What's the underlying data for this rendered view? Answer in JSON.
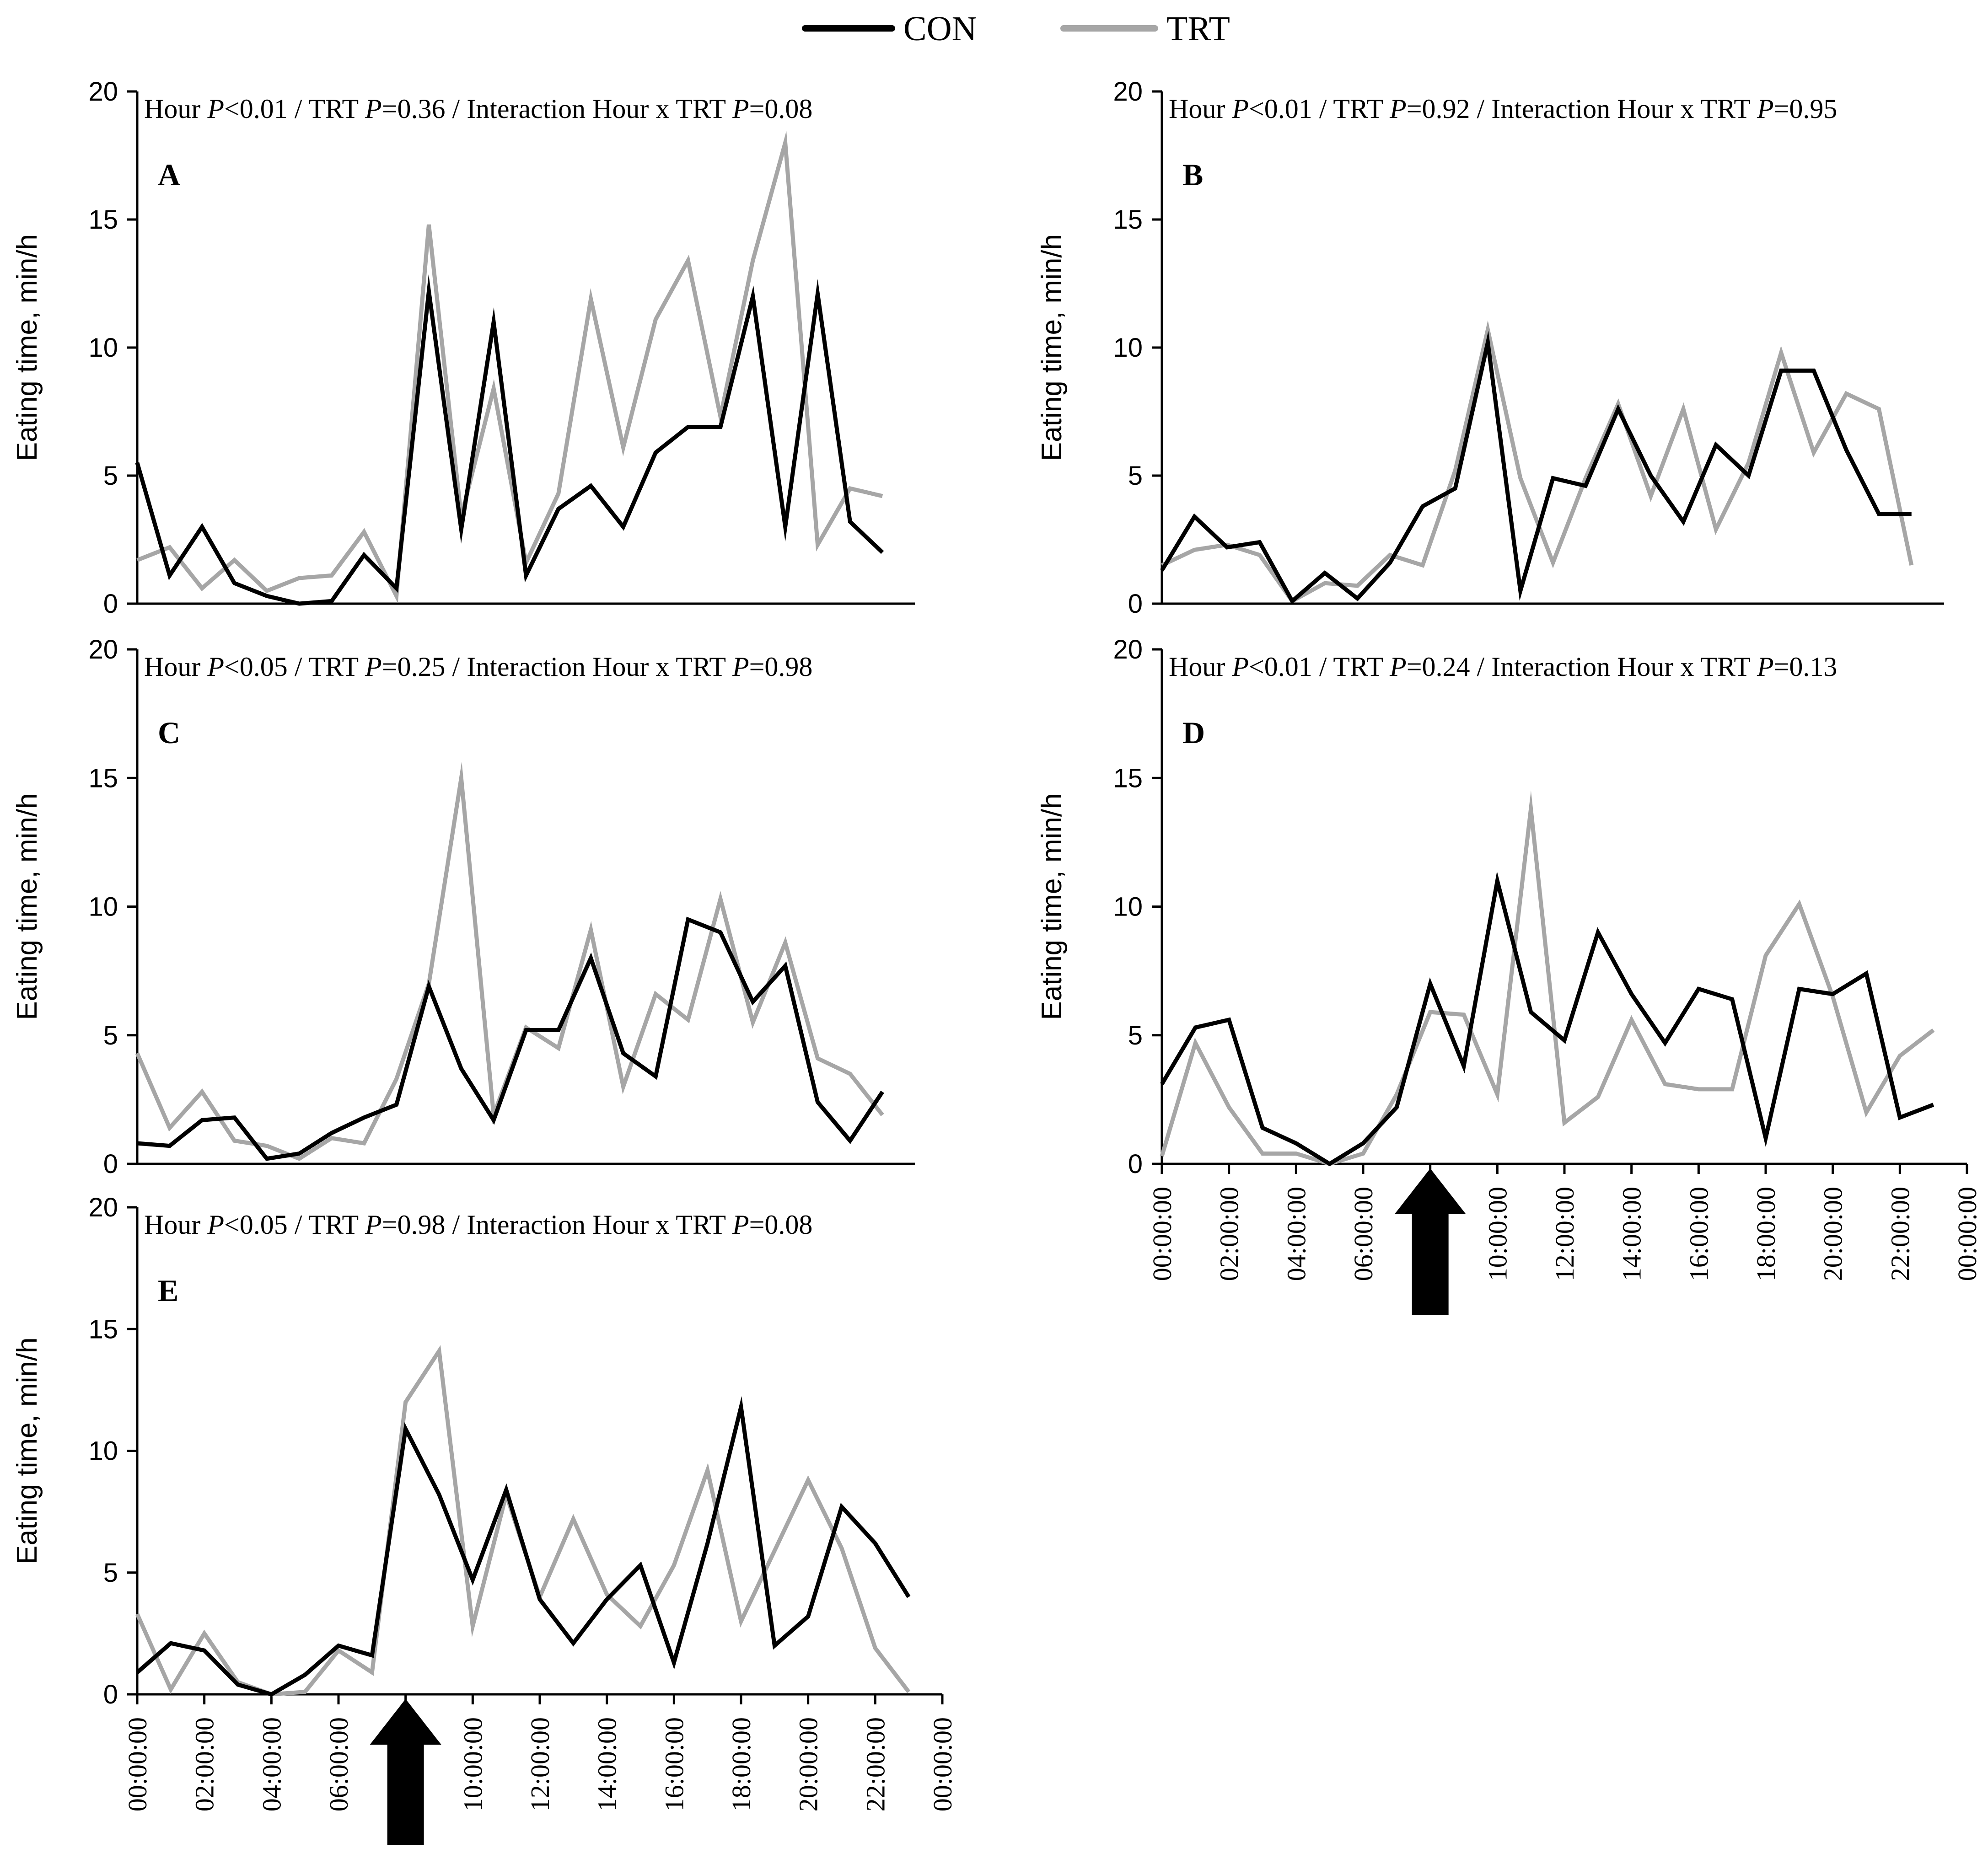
{
  "legend": [
    {
      "name": "CON",
      "color": "#000000"
    },
    {
      "name": "TRT",
      "color": "#a6a6a6"
    }
  ],
  "chart_data": [
    {
      "type": "line",
      "panel_letter": "A",
      "stats": {
        "hour": "<0.01",
        "trt": "=0.36",
        "interaction": "=0.08"
      },
      "ylabel": "Eating time, min/h",
      "ylim": [
        0,
        20
      ],
      "yticks": [
        "0",
        "5",
        "10",
        "15",
        "20"
      ],
      "xlim": [
        0,
        24
      ],
      "x": [
        0,
        1,
        2,
        3,
        4,
        5,
        6,
        7,
        8,
        9,
        10,
        11,
        12,
        13,
        14,
        15,
        16,
        17,
        18,
        19,
        20,
        21,
        22,
        23
      ],
      "series": [
        {
          "name": "CON",
          "values": [
            5.5,
            1.1,
            3.0,
            0.8,
            0.3,
            0.0,
            0.1,
            1.9,
            0.6,
            12.2,
            2.9,
            11.0,
            1.1,
            3.7,
            4.6,
            3.0,
            5.9,
            6.9,
            6.9,
            12.0,
            3.0,
            12.1,
            3.2,
            2.0
          ]
        },
        {
          "name": "TRT",
          "values": [
            1.7,
            2.2,
            0.6,
            1.7,
            0.5,
            1.0,
            1.1,
            2.8,
            0.3,
            14.8,
            3.4,
            8.4,
            1.6,
            4.3,
            11.9,
            6.1,
            11.1,
            13.4,
            7.3,
            13.4,
            18.0,
            2.3,
            4.5,
            4.2
          ]
        }
      ]
    },
    {
      "type": "line",
      "panel_letter": "B",
      "stats": {
        "hour": "<0.01",
        "trt": "=0.92",
        "interaction": "=0.95"
      },
      "ylabel": "Eating time, min/h",
      "ylim": [
        0,
        20
      ],
      "yticks": [
        "0",
        "5",
        "10",
        "15",
        "20"
      ],
      "xlim": [
        0,
        24
      ],
      "x": [
        0,
        1,
        2,
        3,
        4,
        5,
        6,
        7,
        8,
        9,
        10,
        11,
        12,
        13,
        14,
        15,
        16,
        17,
        18,
        19,
        20,
        21,
        22,
        23
      ],
      "series": [
        {
          "name": "CON",
          "values": [
            1.3,
            3.4,
            2.2,
            2.4,
            0.1,
            1.2,
            0.2,
            1.6,
            3.8,
            4.5,
            10.2,
            0.5,
            4.9,
            4.6,
            7.6,
            5.0,
            3.2,
            6.2,
            5.0,
            9.1,
            9.1,
            6.0,
            3.5,
            3.5
          ]
        },
        {
          "name": "TRT",
          "values": [
            1.5,
            2.1,
            2.3,
            1.9,
            0.1,
            0.8,
            0.7,
            1.9,
            1.5,
            5.2,
            10.7,
            4.9,
            1.6,
            4.9,
            7.8,
            4.2,
            7.6,
            2.9,
            5.5,
            9.8,
            5.9,
            8.2,
            7.6,
            1.5
          ]
        }
      ]
    },
    {
      "type": "line",
      "panel_letter": "C",
      "stats": {
        "hour": "<0.05",
        "trt": "=0.25",
        "interaction": "=0.98"
      },
      "ylabel": "Eating time, min/h",
      "ylim": [
        0,
        20
      ],
      "yticks": [
        "0",
        "5",
        "10",
        "15",
        "20"
      ],
      "xlim": [
        0,
        24
      ],
      "x": [
        0,
        1,
        2,
        3,
        4,
        5,
        6,
        7,
        8,
        9,
        10,
        11,
        12,
        13,
        14,
        15,
        16,
        17,
        18,
        19,
        20,
        21,
        22,
        23
      ],
      "series": [
        {
          "name": "CON",
          "values": [
            0.8,
            0.7,
            1.7,
            1.8,
            0.2,
            0.4,
            1.2,
            1.8,
            2.3,
            6.9,
            3.7,
            1.7,
            5.2,
            5.2,
            8.0,
            4.3,
            3.4,
            9.5,
            9.0,
            6.3,
            7.7,
            2.4,
            0.9,
            2.8
          ]
        },
        {
          "name": "TRT",
          "values": [
            4.3,
            1.4,
            2.8,
            0.9,
            0.7,
            0.2,
            1.0,
            0.8,
            3.3,
            7.0,
            15.0,
            1.9,
            5.3,
            4.5,
            9.1,
            3.0,
            6.6,
            5.6,
            10.3,
            5.5,
            8.6,
            4.1,
            3.5,
            1.9
          ]
        }
      ]
    },
    {
      "type": "line",
      "panel_letter": "D",
      "stats": {
        "hour": "<0.01",
        "trt": "=0.24",
        "interaction": "=0.13"
      },
      "ylabel": "Eating time, min/h",
      "ylim": [
        0,
        20
      ],
      "yticks": [
        "0",
        "5",
        "10",
        "15",
        "20"
      ],
      "xlim": [
        0,
        24
      ],
      "x": [
        0,
        1,
        2,
        3,
        4,
        5,
        6,
        7,
        8,
        9,
        10,
        11,
        12,
        13,
        14,
        15,
        16,
        17,
        18,
        19,
        20,
        21,
        22,
        23
      ],
      "xticks": [
        "00:00:00",
        "02:00:00",
        "04:00:00",
        "06:00:00",
        "08:00:00",
        "10:00:00",
        "12:00:00",
        "14:00:00",
        "16:00:00",
        "18:00:00",
        "20:00:00",
        "22:00:00",
        "00:00:00"
      ],
      "arrow_at_hour": 8,
      "series": [
        {
          "name": "CON",
          "values": [
            3.1,
            5.3,
            5.6,
            1.4,
            0.8,
            0.0,
            0.8,
            2.2,
            7.0,
            3.8,
            11.0,
            5.9,
            4.8,
            9.0,
            6.6,
            4.7,
            6.8,
            6.4,
            1.0,
            6.8,
            6.6,
            7.4,
            1.8,
            2.3
          ]
        },
        {
          "name": "TRT",
          "values": [
            0.3,
            4.7,
            2.2,
            0.4,
            0.4,
            0.0,
            0.4,
            2.7,
            5.9,
            5.8,
            2.7,
            13.8,
            1.6,
            2.6,
            5.6,
            3.1,
            2.9,
            2.9,
            8.1,
            10.1,
            6.5,
            2.0,
            4.2,
            5.2
          ]
        }
      ]
    },
    {
      "type": "line",
      "panel_letter": "E",
      "stats": {
        "hour": "<0.05",
        "trt": "=0.98",
        "interaction": "=0.08"
      },
      "ylabel": "Eating time, min/h",
      "ylim": [
        0,
        20
      ],
      "yticks": [
        "0",
        "5",
        "10",
        "15",
        "20"
      ],
      "xlim": [
        0,
        24
      ],
      "x": [
        0,
        1,
        2,
        3,
        4,
        5,
        6,
        7,
        8,
        9,
        10,
        11,
        12,
        13,
        14,
        15,
        16,
        17,
        18,
        19,
        20,
        21,
        22,
        23
      ],
      "xticks": [
        "00:00:00",
        "02:00:00",
        "04:00:00",
        "06:00:00",
        "08:00:00",
        "10:00:00",
        "12:00:00",
        "14:00:00",
        "16:00:00",
        "18:00:00",
        "20:00:00",
        "22:00:00",
        "00:00:00"
      ],
      "arrow_at_hour": 8,
      "series": [
        {
          "name": "CON",
          "values": [
            0.9,
            2.1,
            1.8,
            0.4,
            0.0,
            0.8,
            2.0,
            1.6,
            10.9,
            8.2,
            4.7,
            8.4,
            3.9,
            2.1,
            3.9,
            5.3,
            1.3,
            6.2,
            11.8,
            2.0,
            3.2,
            7.7,
            6.2,
            4.0
          ]
        },
        {
          "name": "TRT",
          "values": [
            3.3,
            0.2,
            2.5,
            0.5,
            0.0,
            0.1,
            1.8,
            0.9,
            12.0,
            14.1,
            2.8,
            8.2,
            4.0,
            7.2,
            4.1,
            2.8,
            5.3,
            9.2,
            3.0,
            5.9,
            8.8,
            6.0,
            1.9,
            0.1
          ]
        }
      ]
    }
  ]
}
